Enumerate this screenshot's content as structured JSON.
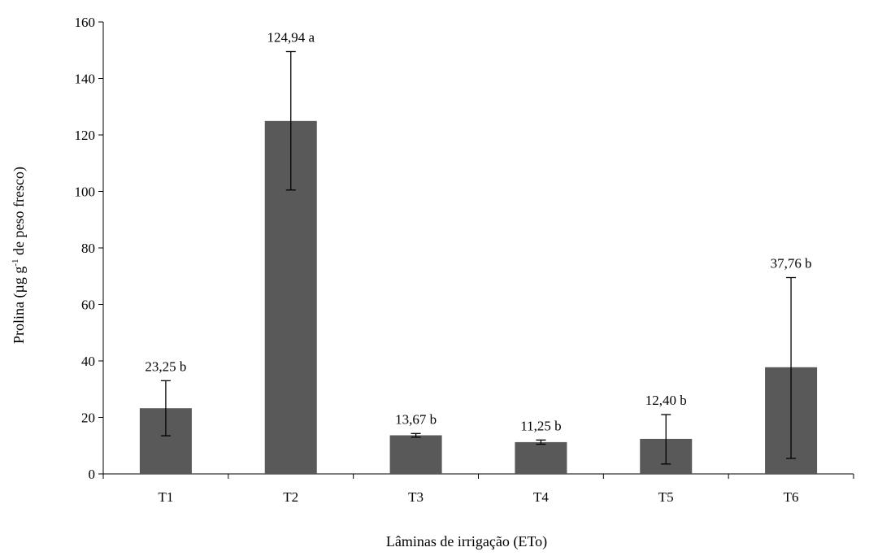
{
  "chart_data": {
    "type": "bar",
    "categories": [
      "T1",
      "T2",
      "T3",
      "T4",
      "T5",
      "T6"
    ],
    "values": [
      23.25,
      124.94,
      13.67,
      11.25,
      12.4,
      37.76
    ],
    "error_low": [
      13.5,
      100.5,
      13.0,
      10.5,
      3.5,
      5.5
    ],
    "error_high": [
      33.0,
      149.5,
      14.3,
      12.0,
      21.0,
      69.5
    ],
    "data_labels": [
      "23,25 b",
      "124,94 a",
      "13,67 b",
      "11,25 b",
      "12,40 b",
      "37,76 b"
    ],
    "xlabel": "Lâminas de irrigação (ETo)",
    "ylabel_parts": {
      "before": "Prolina (µg g",
      "sup": "-1",
      "after": " de peso fresco)"
    },
    "ylim": [
      0,
      160
    ],
    "yticks": [
      0,
      20,
      40,
      60,
      80,
      100,
      120,
      140,
      160
    ],
    "grid": false,
    "colors": {
      "bar": "#595959",
      "axis": "#000000"
    }
  }
}
